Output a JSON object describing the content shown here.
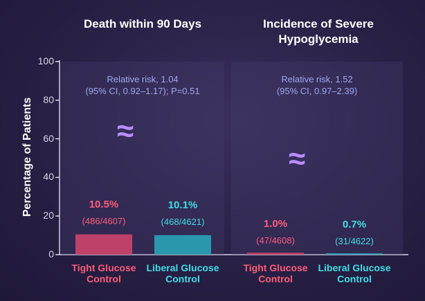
{
  "colors": {
    "tight": "#ff4468",
    "liberal": "#1ec8d0",
    "tight_text": "#ff5c78",
    "liberal_text": "#40dde6"
  },
  "approx_symbol": "≈",
  "chart_data": {
    "type": "bar",
    "ylabel": "Percentage of Patients",
    "ylim": [
      0,
      100
    ],
    "yticks": [
      "0",
      "20",
      "40",
      "60",
      "80",
      "100"
    ],
    "categories": [
      "Tight Glucose Control",
      "Liberal Glucose Control"
    ],
    "panels": [
      {
        "title": "Death within 90 Days",
        "annotation": [
          "Relative risk, 1.04",
          "(95% CI, 0.92–1.17); P=0.51"
        ],
        "bars": [
          {
            "category_lines": [
              "Tight Glucose",
              "Control"
            ],
            "value": 10.5,
            "label": "10.5%",
            "count": "(486/4607)"
          },
          {
            "category_lines": [
              "Liberal Glucose",
              "Control"
            ],
            "value": 10.1,
            "label": "10.1%",
            "count": "(468/4621)"
          }
        ]
      },
      {
        "title": "Incidence of Severe Hypoglycemia",
        "annotation": [
          "Relative risk, 1.52",
          "(95% CI, 0.97–2.39)"
        ],
        "bars": [
          {
            "category_lines": [
              "Tight Glucose",
              "Control"
            ],
            "value": 1.0,
            "label": "1.0%",
            "count": "(47/4608)"
          },
          {
            "category_lines": [
              "Liberal Glucose",
              "Control"
            ],
            "value": 0.7,
            "label": "0.7%",
            "count": "(31/4622)"
          }
        ]
      }
    ]
  }
}
